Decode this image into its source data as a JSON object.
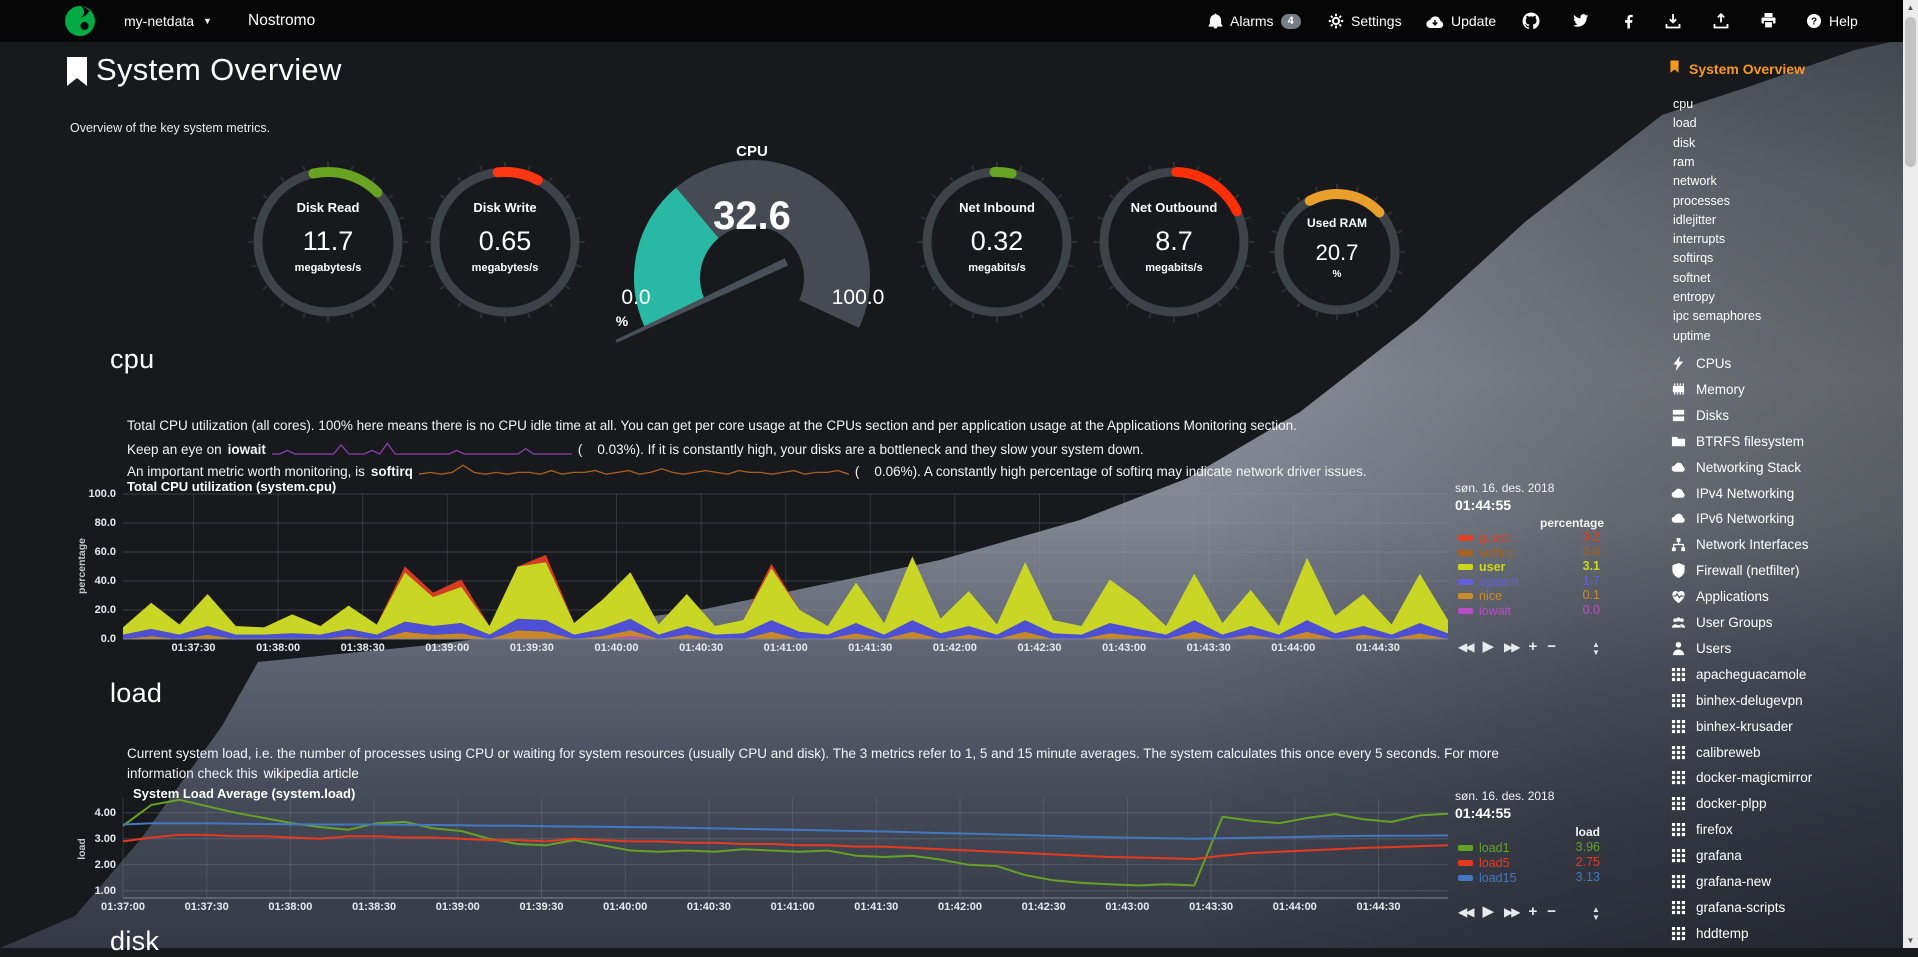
{
  "navbar": {
    "brand": "my-netdata",
    "host": "Nostromo",
    "alarms": "Alarms",
    "alarms_badge": "4",
    "settings": "Settings",
    "update": "Update",
    "help": "Help"
  },
  "header": {
    "title": "System Overview",
    "subtitle": "Overview of the key system metrics."
  },
  "cpu_gauge": {
    "title": "CPU",
    "value": "32.6",
    "min": "0.0",
    "max": "100.0",
    "unit": "%",
    "percent": 32.6,
    "fill_color": "#29b8a4",
    "track_color": "#464b53"
  },
  "gauges": [
    {
      "id": "disk-read",
      "title": "Disk Read",
      "value": "11.7",
      "unit": "megabytes/s",
      "color": "#68a422",
      "arc_start": -12,
      "arc_end": 45
    },
    {
      "id": "disk-write",
      "title": "Disk Write",
      "value": "0.65",
      "unit": "megabytes/s",
      "color": "#ff3612",
      "arc_start": -6,
      "arc_end": 28
    },
    {
      "id": "net-inbound",
      "title": "Net Inbound",
      "value": "0.32",
      "unit": "megabits/s",
      "color": "#68a422",
      "arc_start": -2,
      "arc_end": 12
    },
    {
      "id": "net-outbound",
      "title": "Net Outbound",
      "value": "8.7",
      "unit": "megabits/s",
      "color": "#ff3008",
      "arc_start": 2,
      "arc_end": 64
    },
    {
      "id": "used-ram",
      "title": "Used RAM",
      "value": "20.7",
      "unit": "%",
      "color": "#e89f2c",
      "arc_start": -28,
      "arc_end": 47
    }
  ],
  "sections": {
    "cpu": {
      "heading": "cpu",
      "line1": "Total CPU utilization (all cores). 100% here means there is no CPU idle time at all. You can get per core usage at the CPUs section and per application usage at the Applications Monitoring section.",
      "line2_pre": "Keep an eye on",
      "line2_bold": "iowait",
      "line2_post": "(    0.03%). If it is constantly high, your disks are a bottleneck and they slow your system down.",
      "line3_pre": "An important metric worth monitoring, is",
      "line3_bold": "softirq",
      "line3_post": "(    0.06%). A constantly high percentage of softirq may indicate network driver issues."
    },
    "load": {
      "heading": "load",
      "line1": "Current system load, i.e. the number of processes using CPU or waiting for system resources (usually CPU and disk). The 3 metrics refer to 1, 5 and 15 minute averages. The system calculates this once every 5 seconds. For more",
      "line2_pre": "information check this",
      "link": "wikipedia article"
    },
    "disk": {
      "heading": "disk"
    }
  },
  "cpu_chart": {
    "title": "Total CPU utilization (system.cpu)",
    "date": "søn. 16. des. 2018",
    "time": "01:44:55",
    "unit_header": "percentage",
    "y_label": "percentage",
    "y_ticks": [
      "100.0",
      "80.0",
      "60.0",
      "40.0",
      "20.0",
      "0.0"
    ],
    "x_ticks": [
      "01:37:30",
      "01:38:00",
      "01:38:30",
      "01:39:00",
      "01:39:30",
      "01:40:00",
      "01:40:30",
      "01:41:00",
      "01:41:30",
      "01:42:00",
      "01:42:30",
      "01:43:00",
      "01:43:30",
      "01:44:00",
      "01:44:30"
    ],
    "legend": [
      {
        "label": "guest",
        "color": "#dd4026",
        "value": "0.2",
        "bold": false
      },
      {
        "label": "softirq",
        "color": "#a8601e",
        "value": "0.0",
        "bold": false
      },
      {
        "label": "user",
        "color": "#ccd81c",
        "value": "3.1",
        "bold": true
      },
      {
        "label": "system",
        "color": "#6360e0",
        "value": "1.7",
        "bold": false
      },
      {
        "label": "nice",
        "color": "#cc8c2e",
        "value": "0.1",
        "bold": false
      },
      {
        "label": "iowait",
        "color": "#b84cc6",
        "value": "0.0",
        "bold": false
      }
    ]
  },
  "load_chart": {
    "title": "System Load Average (system.load)",
    "date": "søn. 16. des. 2018",
    "time": "01:44:55",
    "unit_header": "load",
    "y_label": "load",
    "y_ticks": [
      "4.00",
      "3.00",
      "2.00",
      "1.00"
    ],
    "x_ticks": [
      "01:37:00",
      "01:37:30",
      "01:38:00",
      "01:38:30",
      "01:39:00",
      "01:39:30",
      "01:40:00",
      "01:40:30",
      "01:41:00",
      "01:41:30",
      "01:42:00",
      "01:42:30",
      "01:43:00",
      "01:43:30",
      "01:44:00",
      "01:44:30"
    ],
    "legend": [
      {
        "label": "load1",
        "color": "#64a226",
        "value": "3.96",
        "bold": false
      },
      {
        "label": "load5",
        "color": "#e8391f",
        "value": "2.75",
        "bold": false
      },
      {
        "label": "load15",
        "color": "#4477c2",
        "value": "3.13",
        "bold": false
      }
    ]
  },
  "toolbar": {
    "rewind": "◀◀",
    "play": "▶",
    "forward": "▶▶",
    "zoomin": "+",
    "zoomout": "−",
    "up": "▲",
    "down": "▼"
  },
  "sidebar": {
    "active": "System Overview",
    "sub_items": [
      "cpu",
      "load",
      "disk",
      "ram",
      "network",
      "processes",
      "idlejitter",
      "interrupts",
      "softirqs",
      "softnet",
      "entropy",
      "ipc semaphores",
      "uptime"
    ],
    "sections": [
      {
        "icon": "bolt-icon",
        "label": "CPUs"
      },
      {
        "icon": "memory-icon",
        "label": "Memory"
      },
      {
        "icon": "disks-icon",
        "label": "Disks"
      },
      {
        "icon": "folder-icon",
        "label": "BTRFS filesystem"
      },
      {
        "icon": "cloud-icon",
        "label": "Networking Stack"
      },
      {
        "icon": "cloud-icon",
        "label": "IPv4 Networking"
      },
      {
        "icon": "cloud-icon",
        "label": "IPv6 Networking"
      },
      {
        "icon": "sitemap-icon",
        "label": "Network Interfaces"
      },
      {
        "icon": "shield-icon",
        "label": "Firewall (netfilter)"
      },
      {
        "icon": "heartbeat-ic",
        "label": "Applications"
      },
      {
        "icon": "users-icon",
        "label": "User Groups"
      },
      {
        "icon": "user-icon",
        "label": "Users"
      },
      {
        "icon": "grid-icon",
        "label": "apacheguacamole"
      },
      {
        "icon": "grid-icon",
        "label": "binhex-delugevpn"
      },
      {
        "icon": "grid-icon",
        "label": "binhex-krusader"
      },
      {
        "icon": "grid-icon",
        "label": "calibreweb"
      },
      {
        "icon": "grid-icon",
        "label": "docker-magicmirror"
      },
      {
        "icon": "grid-icon",
        "label": "docker-plpp"
      },
      {
        "icon": "grid-icon",
        "label": "firefox"
      },
      {
        "icon": "grid-icon",
        "label": "grafana"
      },
      {
        "icon": "grid-icon",
        "label": "grafana-new"
      },
      {
        "icon": "grid-icon",
        "label": "grafana-scripts"
      },
      {
        "icon": "grid-icon",
        "label": "hddtemp"
      }
    ]
  },
  "chart_data": [
    {
      "id": "system.cpu",
      "type": "area",
      "stacked": true,
      "title": "Total CPU utilization (system.cpu)",
      "unit": "percentage",
      "time_start": "01:37:05",
      "time_step_s": 10,
      "ylim": [
        0,
        100
      ],
      "grid": true,
      "legend_position": "right",
      "series": [
        {
          "name": "iowait",
          "color": "#b84cb8",
          "values": [
            0,
            0,
            0,
            0,
            0,
            0,
            0,
            0,
            0,
            0,
            0,
            0,
            0,
            0,
            0,
            0,
            0,
            0,
            2,
            0,
            0,
            0,
            0,
            0,
            0,
            0,
            0,
            0,
            0,
            0,
            0,
            0,
            0,
            0,
            0,
            0,
            0,
            0,
            0,
            0,
            0,
            0,
            0,
            0,
            0,
            0,
            0,
            0
          ]
        },
        {
          "name": "nice",
          "color": "#c8872b",
          "values": [
            0,
            2,
            0,
            3,
            0,
            0,
            0,
            0,
            2,
            0,
            5,
            3,
            4,
            0,
            6,
            5,
            0,
            2,
            4,
            0,
            3,
            0,
            0,
            5,
            0,
            0,
            4,
            0,
            5,
            0,
            3,
            0,
            5,
            0,
            0,
            4,
            2,
            0,
            5,
            0,
            3,
            0,
            5,
            0,
            3,
            0,
            4,
            0
          ]
        },
        {
          "name": "system",
          "color": "#4d50d4",
          "values": [
            3,
            5,
            3,
            6,
            3,
            3,
            4,
            3,
            5,
            3,
            7,
            6,
            7,
            3,
            8,
            8,
            3,
            5,
            8,
            3,
            6,
            3,
            4,
            8,
            5,
            3,
            7,
            3,
            8,
            4,
            6,
            3,
            8,
            4,
            3,
            7,
            5,
            3,
            8,
            3,
            6,
            3,
            8,
            4,
            6,
            3,
            7,
            4
          ]
        },
        {
          "name": "user",
          "color": "#c9d626",
          "values": [
            5,
            18,
            7,
            22,
            6,
            5,
            13,
            6,
            16,
            7,
            34,
            20,
            25,
            6,
            36,
            40,
            8,
            20,
            32,
            7,
            22,
            6,
            9,
            36,
            15,
            6,
            28,
            8,
            44,
            10,
            24,
            7,
            40,
            9,
            6,
            30,
            20,
            6,
            32,
            8,
            25,
            6,
            43,
            12,
            22,
            7,
            34,
            9
          ]
        },
        {
          "name": "guest",
          "color": "#da3a22",
          "values": [
            0,
            0,
            0,
            0,
            0,
            0,
            0,
            0,
            0,
            0,
            4,
            3,
            5,
            0,
            0,
            5,
            0,
            0,
            0,
            0,
            0,
            0,
            0,
            3,
            0,
            0,
            0,
            0,
            0,
            0,
            0,
            0,
            0,
            0,
            0,
            0,
            0,
            0,
            0,
            0,
            0,
            0,
            0,
            0,
            0,
            0,
            0,
            0
          ]
        }
      ],
      "last_values": {
        "guest": 0.2,
        "softirq": 0.0,
        "user": 3.1,
        "system": 1.7,
        "nice": 0.1,
        "iowait": 0.0
      }
    },
    {
      "id": "system.load",
      "type": "line",
      "stacked": false,
      "title": "System Load Average (system.load)",
      "unit": "load",
      "time_start": "01:37:00",
      "time_step_s": 10,
      "ylim": [
        0.72,
        4.57
      ],
      "grid": true,
      "legend_position": "right",
      "series": [
        {
          "name": "load1",
          "color": "#64a226",
          "values": [
            3.5,
            4.3,
            4.5,
            4.25,
            4.0,
            3.8,
            3.6,
            3.45,
            3.35,
            3.6,
            3.65,
            3.4,
            3.3,
            3.0,
            2.8,
            2.75,
            2.95,
            2.75,
            2.55,
            2.5,
            2.55,
            2.5,
            2.6,
            2.55,
            2.5,
            2.55,
            2.35,
            2.3,
            2.35,
            2.2,
            2.0,
            1.95,
            1.6,
            1.4,
            1.3,
            1.25,
            1.2,
            1.25,
            1.2,
            3.85,
            3.7,
            3.6,
            3.8,
            3.95,
            3.75,
            3.65,
            3.9,
            3.96
          ]
        },
        {
          "name": "load5",
          "color": "#e8391f",
          "values": [
            2.9,
            3.05,
            3.15,
            3.15,
            3.1,
            3.1,
            3.05,
            3.0,
            3.1,
            3.1,
            3.05,
            3.05,
            3.0,
            2.95,
            2.95,
            2.9,
            3.0,
            2.95,
            2.9,
            2.9,
            2.85,
            2.85,
            2.8,
            2.8,
            2.75,
            2.75,
            2.7,
            2.7,
            2.65,
            2.6,
            2.55,
            2.5,
            2.45,
            2.4,
            2.35,
            2.3,
            2.28,
            2.25,
            2.22,
            2.35,
            2.45,
            2.5,
            2.55,
            2.6,
            2.65,
            2.68,
            2.72,
            2.75
          ]
        },
        {
          "name": "load15",
          "color": "#4477c2",
          "values": [
            3.55,
            3.6,
            3.6,
            3.6,
            3.58,
            3.57,
            3.56,
            3.55,
            3.55,
            3.55,
            3.54,
            3.53,
            3.52,
            3.5,
            3.5,
            3.48,
            3.47,
            3.46,
            3.45,
            3.44,
            3.42,
            3.4,
            3.38,
            3.36,
            3.34,
            3.32,
            3.3,
            3.28,
            3.25,
            3.22,
            3.2,
            3.17,
            3.14,
            3.11,
            3.08,
            3.06,
            3.04,
            3.02,
            3.0,
            3.02,
            3.04,
            3.06,
            3.08,
            3.1,
            3.11,
            3.12,
            3.12,
            3.13
          ]
        }
      ],
      "last_values": {
        "load1": 3.96,
        "load5": 2.75,
        "load15": 3.13
      }
    },
    {
      "id": "iowait-sparkline",
      "type": "line",
      "color": "#8d3fae",
      "values": [
        0,
        0,
        2,
        0,
        0,
        0,
        0,
        0,
        0,
        5,
        0,
        0,
        0,
        2,
        0,
        6,
        0,
        0,
        0,
        0,
        0,
        0,
        0,
        0,
        2,
        0,
        0,
        0,
        0,
        0,
        0,
        0,
        0,
        3,
        0,
        0,
        0,
        0,
        0,
        0
      ]
    },
    {
      "id": "softirq-sparkline",
      "type": "line",
      "color": "#a8601e",
      "values": [
        1,
        2,
        1,
        2,
        6,
        2,
        1,
        2,
        1,
        2,
        2,
        1,
        3,
        1,
        2,
        2,
        3,
        1,
        2,
        3,
        1,
        2,
        4,
        2,
        1,
        2,
        3,
        2,
        1,
        3,
        2,
        2,
        1,
        2,
        3,
        1,
        2,
        2,
        3,
        1
      ]
    }
  ]
}
